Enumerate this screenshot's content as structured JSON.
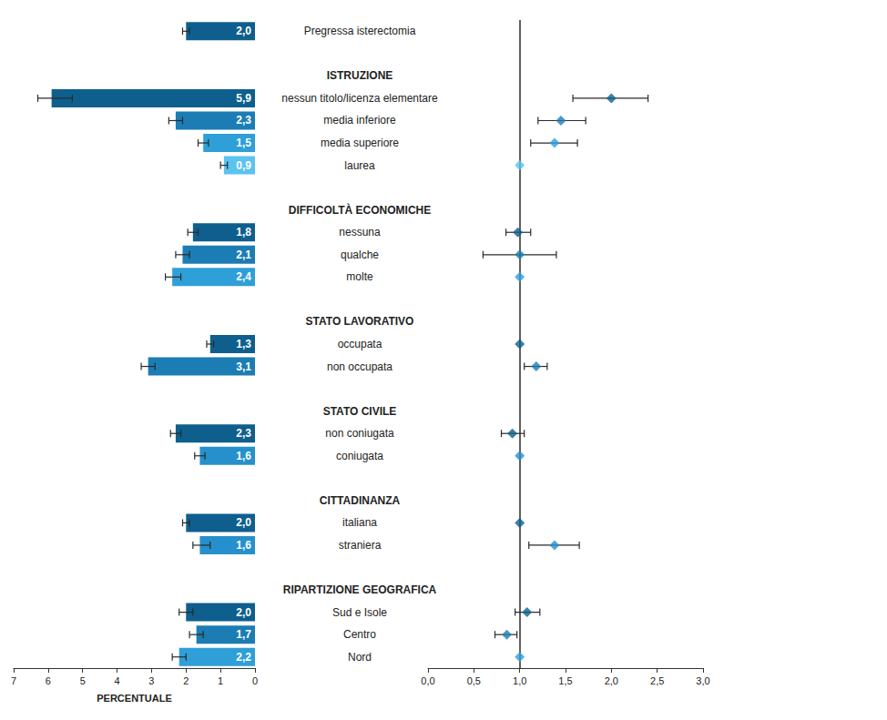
{
  "chart_data": {
    "type": "bar",
    "orientation": "horizontal",
    "data_labels": true,
    "grid": false,
    "xlabel": "PERCENTUALE",
    "xlim": [
      0,
      7
    ],
    "xticks": [
      0,
      1,
      2,
      3,
      4,
      5,
      6,
      7
    ],
    "marker": "diamond",
    "reference_line": 1,
    "odds_ratio_xlim": [
      0,
      3
    ],
    "odds_ratio_xticks": [
      {
        "value": 0,
        "label": "0,0"
      },
      {
        "value": 0.5,
        "label": "0,5"
      },
      {
        "value": 1,
        "label": "1,0"
      },
      {
        "value": 1.5,
        "label": "1,5"
      },
      {
        "value": 2,
        "label": "2,0"
      },
      {
        "value": 2.5,
        "label": "2,5"
      },
      {
        "value": 3,
        "label": "3,0"
      }
    ],
    "groups": [
      {
        "categories": [
          "Pregressa isterectomia"
        ],
        "values": [
          2.0
        ],
        "value_labels": [
          "2,0"
        ],
        "errors": [
          [
            1.9,
            2.1
          ]
        ],
        "colors": [
          "#0e5f8d"
        ],
        "odds_ratios": [
          null
        ],
        "odds_ratio_errors": [
          null
        ]
      },
      {
        "title": "ISTRUZIONE",
        "categories": [
          "nessun titolo/licenza elementare",
          "media inferiore",
          "media superiore",
          "laurea"
        ],
        "values": [
          5.9,
          2.3,
          1.5,
          0.9
        ],
        "value_labels": [
          "5,9",
          "2,3",
          "1,5",
          "0,9"
        ],
        "errors": [
          [
            5.3,
            6.3
          ],
          [
            2.1,
            2.5
          ],
          [
            1.35,
            1.65
          ],
          [
            0.8,
            1.0
          ]
        ],
        "colors": [
          "#0e5f8d",
          "#1b7db3",
          "#2f9fd8",
          "#5cc3ee"
        ],
        "odds_ratios": [
          2.0,
          1.45,
          1.38,
          1.0
        ],
        "odds_ratio_errors": [
          [
            1.58,
            2.4
          ],
          [
            1.2,
            1.72
          ],
          [
            1.12,
            1.63
          ],
          null
        ]
      },
      {
        "title": "DIFFICOLTÀ ECONOMICHE",
        "categories": [
          "nessuna",
          "qualche",
          "molte"
        ],
        "values": [
          1.8,
          2.1,
          2.4
        ],
        "value_labels": [
          "1,8",
          "2,1",
          "2,4"
        ],
        "errors": [
          [
            1.65,
            1.95
          ],
          [
            1.9,
            2.3
          ],
          [
            2.15,
            2.6
          ]
        ],
        "colors": [
          "#0e5f8d",
          "#1b7db3",
          "#2f9fd8"
        ],
        "odds_ratios": [
          0.98,
          1.0,
          1.0
        ],
        "odds_ratio_errors": [
          [
            0.85,
            1.12
          ],
          [
            0.6,
            1.4
          ],
          null
        ]
      },
      {
        "title": "STATO LAVORATIVO",
        "categories": [
          "occupata",
          "non occupata"
        ],
        "values": [
          1.3,
          3.1
        ],
        "value_labels": [
          "1,3",
          "3,1"
        ],
        "errors": [
          [
            1.2,
            1.4
          ],
          [
            2.9,
            3.3
          ]
        ],
        "colors": [
          "#0e5f8d",
          "#1b7db3"
        ],
        "odds_ratios": [
          1.0,
          1.18
        ],
        "odds_ratio_errors": [
          null,
          [
            1.05,
            1.3
          ]
        ]
      },
      {
        "title": "STATO CIVILE",
        "categories": [
          "non coniugata",
          "coniugata"
        ],
        "values": [
          2.3,
          1.6
        ],
        "value_labels": [
          "2,3",
          "1,6"
        ],
        "errors": [
          [
            2.15,
            2.45
          ],
          [
            1.45,
            1.75
          ]
        ],
        "colors": [
          "#0e5f8d",
          "#2590cc"
        ],
        "odds_ratios": [
          0.92,
          1.0
        ],
        "odds_ratio_errors": [
          [
            0.8,
            1.05
          ],
          null
        ]
      },
      {
        "title": "CITTADINANZA",
        "categories": [
          "italiana",
          "straniera"
        ],
        "values": [
          2.0,
          1.6
        ],
        "value_labels": [
          "2,0",
          "1,6"
        ],
        "errors": [
          [
            1.9,
            2.1
          ],
          [
            1.3,
            1.8
          ]
        ],
        "colors": [
          "#0e5f8d",
          "#2590cc"
        ],
        "odds_ratios": [
          1.0,
          1.38
        ],
        "odds_ratio_errors": [
          null,
          [
            1.1,
            1.65
          ]
        ]
      },
      {
        "title": "RIPARTIZIONE GEOGRAFICA",
        "categories": [
          "Sud e Isole",
          "Centro",
          "Nord"
        ],
        "values": [
          2.0,
          1.7,
          2.2
        ],
        "value_labels": [
          "2,0",
          "1,7",
          "2,2"
        ],
        "errors": [
          [
            1.8,
            2.2
          ],
          [
            1.5,
            1.9
          ],
          [
            2.0,
            2.4
          ]
        ],
        "colors": [
          "#0e5f8d",
          "#1b7db3",
          "#2f9fd8"
        ],
        "odds_ratios": [
          1.08,
          0.86,
          1.0
        ],
        "odds_ratio_errors": [
          [
            0.95,
            1.22
          ],
          [
            0.73,
            0.97
          ],
          null
        ]
      }
    ]
  }
}
